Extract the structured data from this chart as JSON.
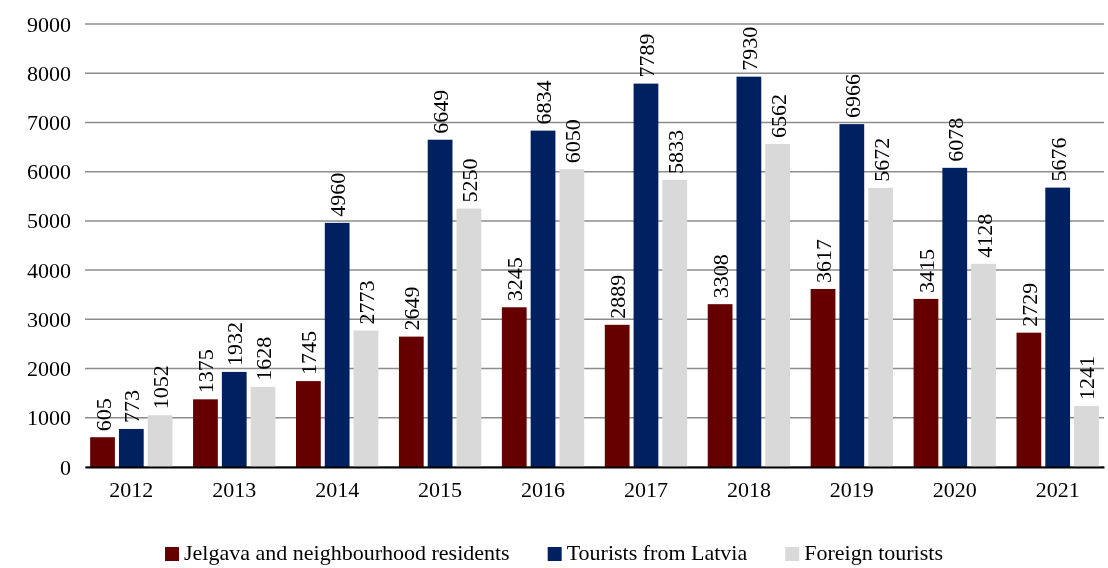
{
  "chart_data": {
    "type": "bar",
    "categories": [
      "2012",
      "2013",
      "2014",
      "2015",
      "2016",
      "2017",
      "2018",
      "2019",
      "2020",
      "2021"
    ],
    "series": [
      {
        "name": "Jelgava and neighbourhood residents",
        "color": "#660000",
        "values": [
          605,
          1375,
          1745,
          2649,
          3245,
          2889,
          3308,
          3617,
          3415,
          2729
        ]
      },
      {
        "name": "Tourists from Latvia",
        "color": "#002060",
        "values": [
          773,
          1932,
          4960,
          6649,
          6834,
          7789,
          7930,
          6966,
          6078,
          5676
        ]
      },
      {
        "name": "Foreign tourists",
        "color": "#d9d9d9",
        "values": [
          1052,
          1628,
          2773,
          5250,
          6050,
          5833,
          6562,
          5672,
          4128,
          1241
        ]
      }
    ],
    "ylim": [
      0,
      9000
    ],
    "yticks": [
      0,
      1000,
      2000,
      3000,
      4000,
      5000,
      6000,
      7000,
      8000,
      9000
    ],
    "grid": "y",
    "legend": "bottom",
    "data_labels": true
  }
}
